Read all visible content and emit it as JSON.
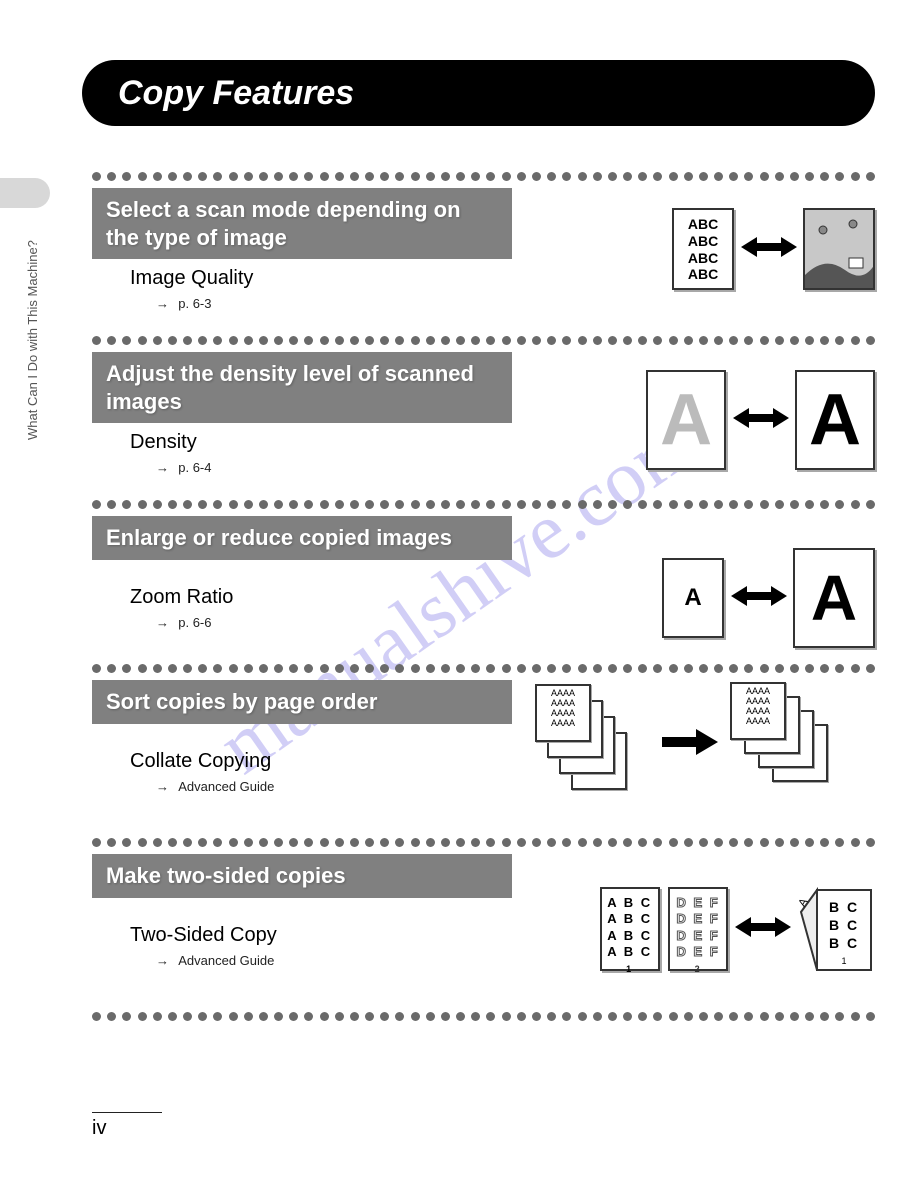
{
  "sidebar": {
    "label": "What Can I Do with This Machine?"
  },
  "page": {
    "title": "Copy Features",
    "number": "iv"
  },
  "features": [
    {
      "header": "Select a scan mode depending on the type of image",
      "label": "Image Quality",
      "ref": "p. 6-3",
      "illus": "abc-picture"
    },
    {
      "header": "Adjust the density level of scanned images",
      "label": "Density",
      "ref": "p. 6-4",
      "illus": "density"
    },
    {
      "header": "Enlarge or reduce copied images",
      "label": "Zoom Ratio",
      "ref": "p. 6-6",
      "illus": "zoom"
    },
    {
      "header": "Sort copies by page order",
      "label": "Collate Copying",
      "ref": "Advanced Guide",
      "illus": "collate"
    },
    {
      "header": "Make two-sided copies",
      "label": "Two-Sided Copy",
      "ref": "Advanced Guide",
      "illus": "twosided"
    }
  ]
}
